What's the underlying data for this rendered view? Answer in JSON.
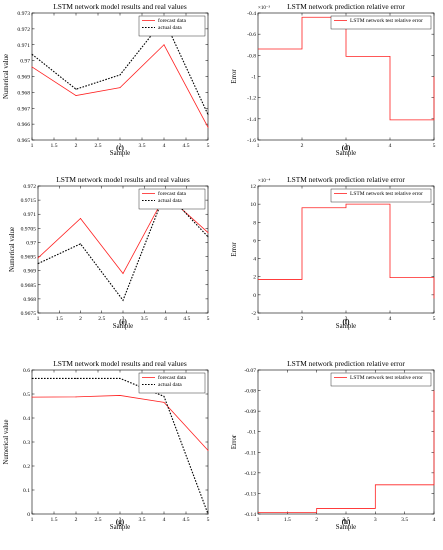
{
  "chart_data": [
    {
      "panel": "top-left",
      "type": "line",
      "caption": "(c)",
      "title": "LSTM network model results and real values",
      "xlabel": "Sample",
      "ylabel": "Numerical value",
      "xlim": [
        1,
        5
      ],
      "ylim": [
        0.965,
        0.973
      ],
      "xticks": [
        "1",
        "1.5",
        "2",
        "2.5",
        "3",
        "3.5",
        "4",
        "4.5",
        "5"
      ],
      "yticks": [
        "0.965",
        "0.966",
        "0.967",
        "0.968",
        "0.969",
        "0.97",
        "0.971",
        "0.972",
        "0.973"
      ],
      "legend_position": "top-right",
      "x": [
        1,
        2,
        3,
        4,
        5
      ],
      "series": [
        {
          "name": "forecast data",
          "color": "#ff2020",
          "dash": "solid",
          "values": [
            0.9696,
            0.9678,
            0.9683,
            0.971,
            0.9658
          ]
        },
        {
          "name": "actual data",
          "color": "#000000",
          "dash": "dotted",
          "values": [
            0.9704,
            0.9682,
            0.9691,
            0.9726,
            0.9666
          ]
        }
      ]
    },
    {
      "panel": "top-right",
      "type": "line",
      "step": true,
      "caption": "(d)",
      "title": "LSTM network prediction relative error",
      "xlabel": "Sample",
      "ylabel": "Error",
      "exponent": "×10⁻³",
      "xlim": [
        1,
        5
      ],
      "ylim": [
        -1.6,
        -0.4
      ],
      "xticks": [
        "1",
        "2",
        "3",
        "4",
        "5"
      ],
      "yticks": [
        "-1.6",
        "-1.4",
        "-1.2",
        "-1",
        "-0.8",
        "-0.6",
        "-0.4"
      ],
      "legend_position": "top-right",
      "x": [
        1,
        2,
        3,
        4,
        5
      ],
      "series": [
        {
          "name": "LSTM network test relative error",
          "color": "#ff2020",
          "dash": "solid",
          "values": [
            -0.74,
            -0.44,
            -0.81,
            -1.41,
            -1.0
          ]
        }
      ]
    },
    {
      "panel": "middle-left",
      "type": "line",
      "caption": "(e)",
      "title": "LSTM network model results and real values",
      "xlabel": "Sample",
      "ylabel": "Numerical value",
      "xlim": [
        1,
        5
      ],
      "ylim": [
        0.9675,
        0.972
      ],
      "xticks": [
        "1",
        "1.5",
        "2",
        "2.5",
        "3",
        "3.5",
        "4",
        "4.5",
        "5"
      ],
      "yticks": [
        "0.9675",
        "0.968",
        "0.9685",
        "0.969",
        "0.9695",
        "0.97",
        "0.9705",
        "0.971",
        "0.9715",
        "0.972"
      ],
      "legend_position": "top-right",
      "x": [
        1,
        2,
        3,
        4,
        5
      ],
      "series": [
        {
          "name": "forecast data",
          "color": "#ff2020",
          "dash": "solid",
          "values": [
            0.96945,
            0.97085,
            0.9689,
            0.9717,
            0.97035
          ]
        },
        {
          "name": "actual data",
          "color": "#000000",
          "dash": "dotted",
          "values": [
            0.96925,
            0.96995,
            0.96795,
            0.9718,
            0.9702
          ]
        }
      ]
    },
    {
      "panel": "middle-right",
      "type": "line",
      "step": true,
      "caption": "(f)",
      "title": "LSTM network prediction relative error",
      "xlabel": "Sample",
      "ylabel": "Error",
      "exponent": "×10⁻⁴",
      "xlim": [
        1,
        5
      ],
      "ylim": [
        -2,
        12
      ],
      "xticks": [
        "1",
        "2",
        "3",
        "4",
        "5"
      ],
      "yticks": [
        "-2",
        "0",
        "2",
        "4",
        "6",
        "8",
        "10",
        "12"
      ],
      "legend_position": "top-right",
      "x": [
        1,
        2,
        3,
        4,
        5
      ],
      "series": [
        {
          "name": "LSTM network test relative error",
          "color": "#ff2020",
          "dash": "solid",
          "values": [
            1.7,
            9.6,
            10.0,
            1.9,
            -0.4
          ]
        }
      ]
    },
    {
      "panel": "bottom-left",
      "type": "line",
      "caption": "(g)",
      "title": "LSTM network model results and real values",
      "xlabel": "Sample",
      "ylabel": "Numerical value",
      "xlim": [
        1,
        5
      ],
      "ylim": [
        0,
        0.6
      ],
      "xticks": [
        "1",
        "1.5",
        "2",
        "2.5",
        "3",
        "3.5",
        "4",
        "4.5",
        "5"
      ],
      "yticks": [
        "0",
        "0.1",
        "0.2",
        "0.3",
        "0.4",
        "0.5",
        "0.6"
      ],
      "legend_position": "top-right",
      "x": [
        1,
        2,
        3,
        4,
        5
      ],
      "series": [
        {
          "name": "forecast data",
          "color": "#ff2020",
          "dash": "solid",
          "values": [
            0.487,
            0.488,
            0.494,
            0.465,
            0.265
          ]
        },
        {
          "name": "actual data",
          "color": "#000000",
          "dash": "dotted",
          "values": [
            0.565,
            0.565,
            0.565,
            0.49,
            0.0
          ]
        }
      ]
    },
    {
      "panel": "bottom-right",
      "type": "line",
      "step": true,
      "caption": "(h)",
      "title": "LSTM network prediction relative error",
      "xlabel": "Sample",
      "ylabel": "Error",
      "xlim": [
        1,
        4
      ],
      "ylim": [
        -0.14,
        -0.07
      ],
      "xticks": [
        "1",
        "1.5",
        "2",
        "2.5",
        "3",
        "3.5",
        "4"
      ],
      "yticks": [
        "-0.14",
        "-0.13",
        "-0.12",
        "-0.11",
        "-0.1",
        "-0.09",
        "-0.08",
        "-0.07"
      ],
      "legend_position": "top-right",
      "x": [
        1,
        2,
        3,
        4
      ],
      "series": [
        {
          "name": "LSTM network test relative error",
          "color": "#ff2020",
          "dash": "solid",
          "values": [
            -0.1392,
            -0.1373,
            -0.1258,
            -0.08
          ]
        }
      ]
    }
  ]
}
